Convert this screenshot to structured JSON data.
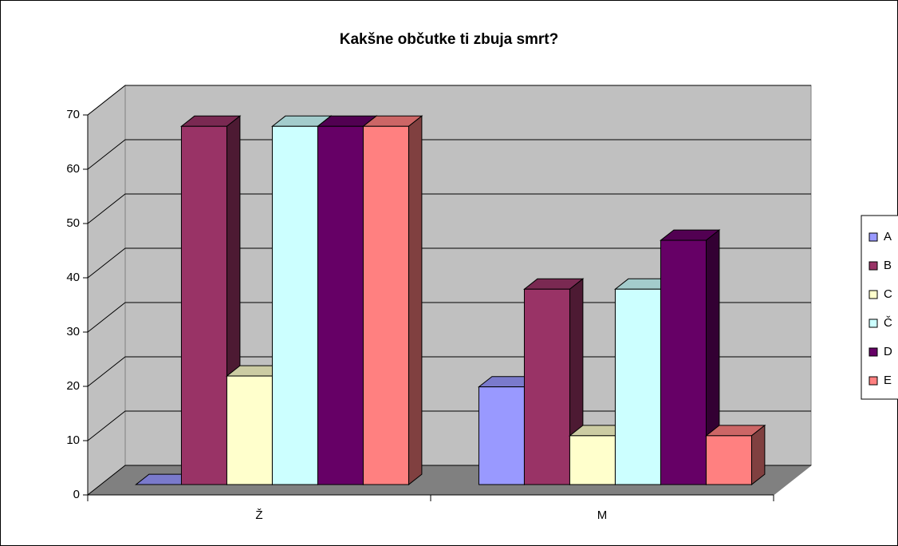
{
  "chart_data": {
    "type": "bar3d",
    "title": "Kakšne občutke ti zbuja smrt?",
    "categories": [
      "Ž",
      "M"
    ],
    "series": [
      {
        "name": "A",
        "color": "#9999ff",
        "values": [
          0,
          18
        ]
      },
      {
        "name": "B",
        "color": "#993366",
        "values": [
          66,
          36
        ]
      },
      {
        "name": "C",
        "color": "#ffffcc",
        "values": [
          20,
          9
        ]
      },
      {
        "name": "Č",
        "color": "#ccffff",
        "values": [
          66,
          36
        ]
      },
      {
        "name": "D",
        "color": "#660066",
        "values": [
          66,
          45
        ]
      },
      {
        "name": "E",
        "color": "#ff8080",
        "values": [
          66,
          9
        ]
      }
    ],
    "ylim": [
      0,
      70
    ],
    "yticks": [
      0,
      10,
      20,
      30,
      40,
      50,
      60,
      70
    ],
    "grid": true,
    "legend": "right"
  }
}
